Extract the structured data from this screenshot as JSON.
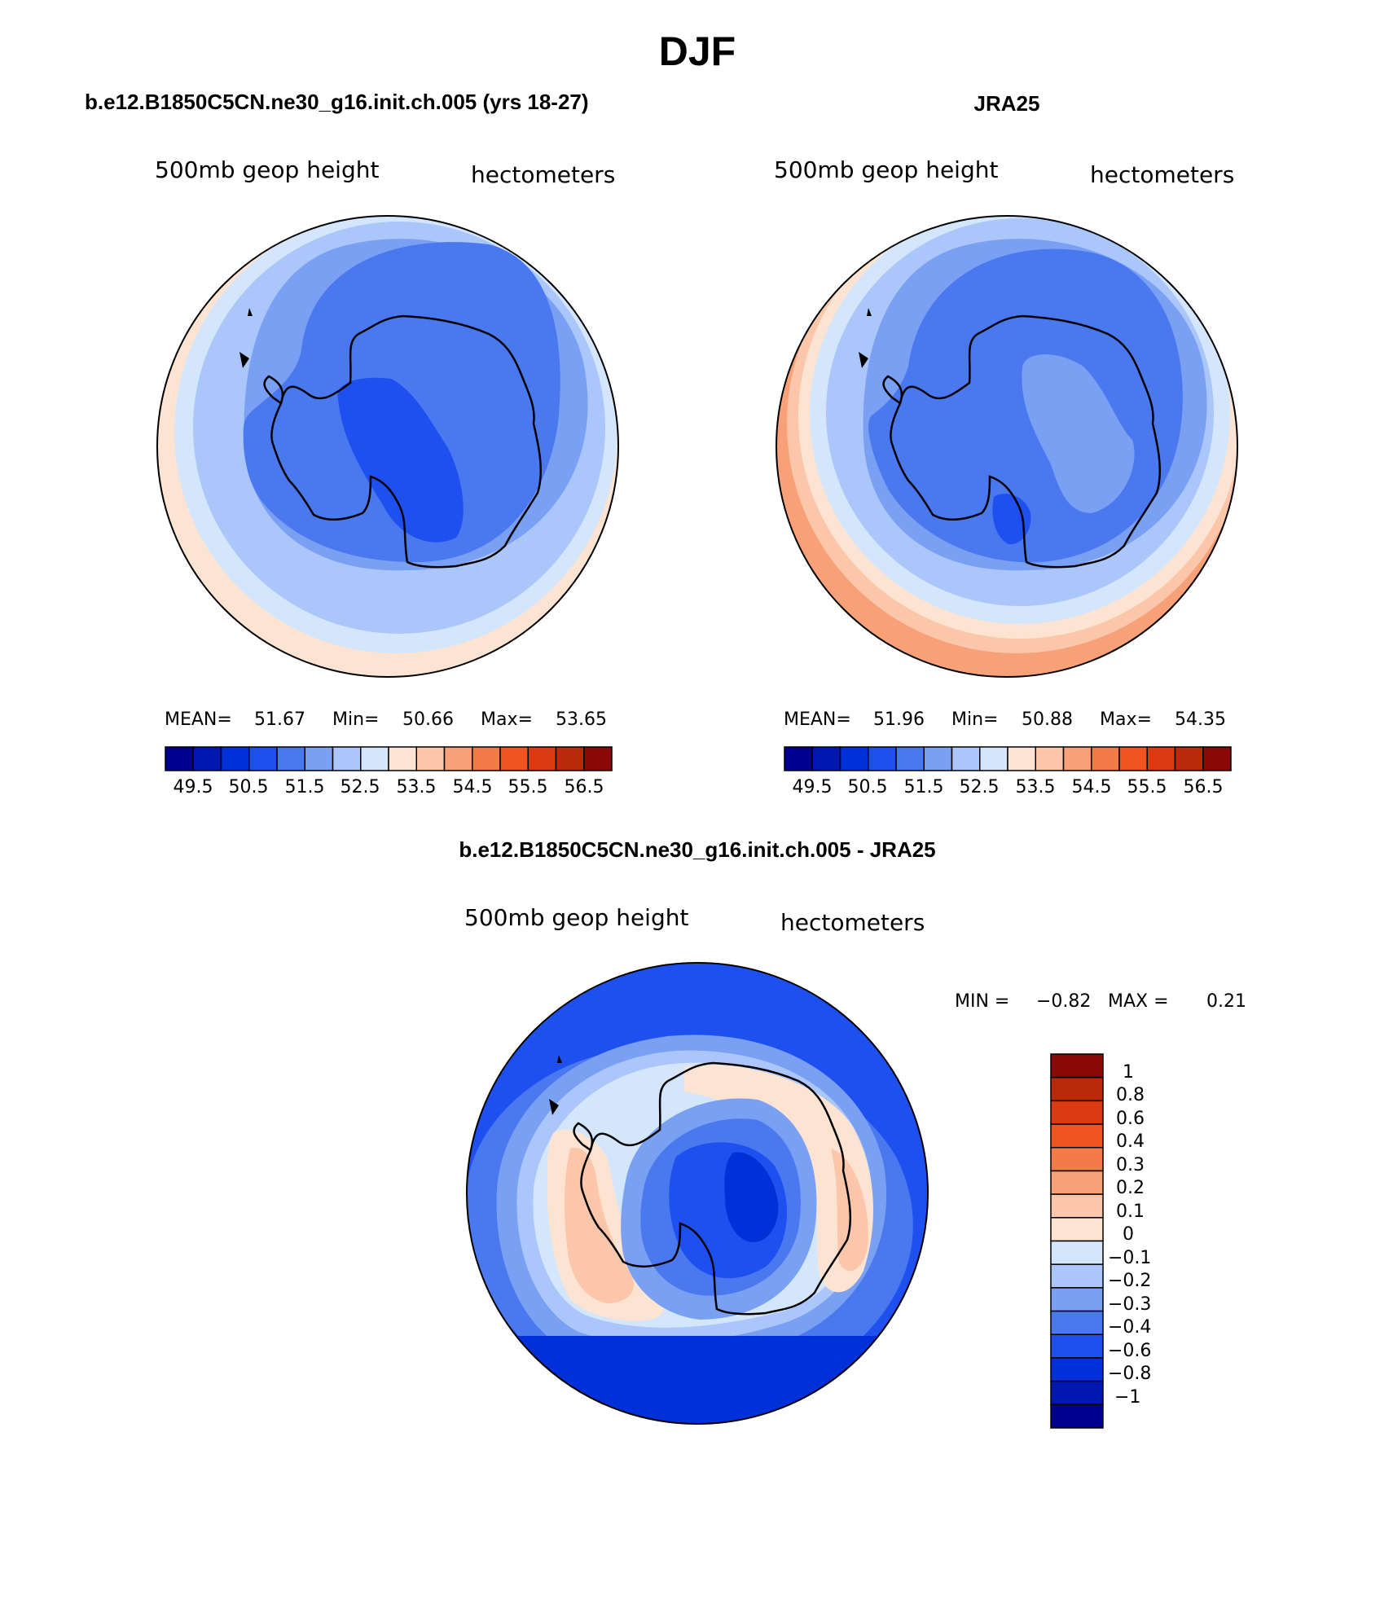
{
  "title": "DJF",
  "panels": [
    {
      "heading": "b.e12.B1850C5CN.ne30_g16.init.ch.005 (yrs 18-27)",
      "left_label": "500mb geop height",
      "right_label": "hectometers",
      "stats": {
        "mean_label": "MEAN=",
        "mean": "51.67",
        "min_label": "Min=",
        "min": "50.66",
        "max_label": "Max=",
        "max": "53.65"
      },
      "colorbar_labels": [
        "49.5",
        "50.5",
        "51.5",
        "52.5",
        "53.5",
        "54.5",
        "55.5",
        "56.5"
      ]
    },
    {
      "heading": "JRA25",
      "left_label": "500mb geop height",
      "right_label": "hectometers",
      "stats": {
        "mean_label": "MEAN=",
        "mean": "51.96",
        "min_label": "Min=",
        "min": "50.88",
        "max_label": "Max=",
        "max": "54.35"
      },
      "colorbar_labels": [
        "49.5",
        "50.5",
        "51.5",
        "52.5",
        "53.5",
        "54.5",
        "55.5",
        "56.5"
      ]
    }
  ],
  "diff_panel": {
    "heading": "b.e12.B1850C5CN.ne30_g16.init.ch.005 - JRA25",
    "left_label": "500mb geop height",
    "right_label": "hectometers",
    "minmax": {
      "min_label": "MIN =",
      "min": "−0.82",
      "max_label": "MAX =",
      "max": "0.21"
    },
    "colorbar_labels": [
      "1",
      "0.8",
      "0.6",
      "0.4",
      "0.3",
      "0.2",
      "0.1",
      "0",
      "−0.1",
      "−0.2",
      "−0.3",
      "−0.4",
      "−0.6",
      "−0.8",
      "−1"
    ]
  },
  "colors": {
    "palette16": [
      "#00008f",
      "#0018b0",
      "#0030d8",
      "#1e50f0",
      "#4a78ee",
      "#7aa0f4",
      "#aac6fa",
      "#d4e6fc",
      "#fde4d2",
      "#fcc6aa",
      "#f8a078",
      "#f47a48",
      "#f25420",
      "#dc3a10",
      "#b82a0a",
      "#8a0808"
    ],
    "coastline": "#000000"
  }
}
